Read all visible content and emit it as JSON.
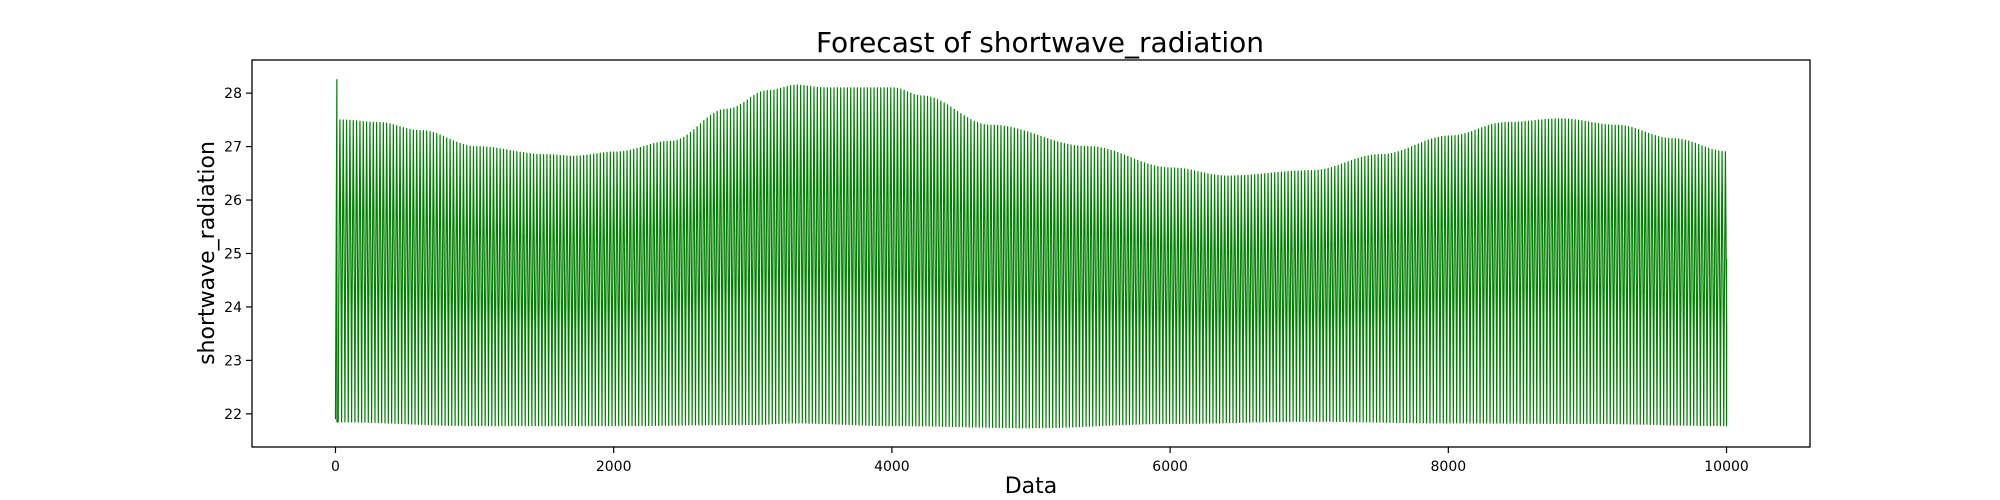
{
  "chart_data": {
    "type": "line",
    "title": "Forecast of shortwave_radiation",
    "xlabel": "Data",
    "ylabel": "shortwave_radiation",
    "xlim": [
      -600,
      10600
    ],
    "ylim": [
      21.38,
      28.62
    ],
    "xticks": [
      0,
      2000,
      4000,
      6000,
      8000,
      10000
    ],
    "yticks": [
      22,
      23,
      24,
      25,
      26,
      27,
      28
    ],
    "xtick_labels": [
      "0",
      "2000",
      "4000",
      "6000",
      "8000",
      "10000"
    ],
    "ytick_labels": [
      "22",
      "23",
      "24",
      "25",
      "26",
      "27",
      "28"
    ],
    "grid": false,
    "color": "#008000",
    "series": [
      {
        "oscillation_period": 24,
        "start_point": {
          "x": 0,
          "y": 21.9
        },
        "initial_spike": {
          "x": 10,
          "y": 28.25
        },
        "final_point": {
          "x": 10000,
          "y": 24.9
        },
        "upper_envelope": {
          "x": [
            20,
            300,
            600,
            1000,
            1500,
            1700,
            2000,
            2400,
            2800,
            3100,
            3300,
            3500,
            3800,
            4000,
            4200,
            4700,
            5400,
            6000,
            6400,
            7000,
            7500,
            8000,
            8400,
            8800,
            9200,
            9600,
            10000
          ],
          "y": [
            27.5,
            27.45,
            27.3,
            27.0,
            26.85,
            26.82,
            26.9,
            27.1,
            27.7,
            28.05,
            28.15,
            28.1,
            28.1,
            28.1,
            27.95,
            27.4,
            27.0,
            26.6,
            26.45,
            26.55,
            26.85,
            27.2,
            27.45,
            27.52,
            27.4,
            27.15,
            26.9
          ]
        },
        "lower_envelope": {
          "x": [
            20,
            1000,
            2000,
            3000,
            3300,
            4000,
            5000,
            6000,
            7000,
            8000,
            9000,
            10000
          ],
          "y": [
            21.85,
            21.78,
            21.78,
            21.8,
            21.83,
            21.78,
            21.74,
            21.82,
            21.86,
            21.83,
            21.82,
            21.78
          ]
        }
      }
    ]
  }
}
